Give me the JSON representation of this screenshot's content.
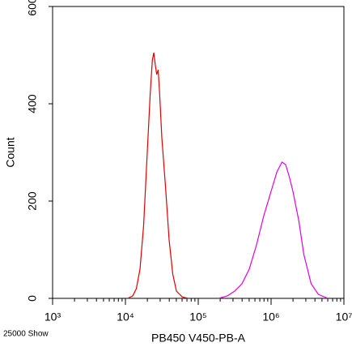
{
  "chart_data": {
    "type": "line",
    "xlabel": "PB450 V450-PB-A",
    "ylabel": "Count",
    "note": "25000 Show",
    "xscale": "log",
    "xlim": [
      1000,
      10000000
    ],
    "xticks": [
      {
        "value": 1000,
        "label": "10³"
      },
      {
        "value": 10000,
        "label": "10⁴"
      },
      {
        "value": 100000,
        "label": "10⁵"
      },
      {
        "value": 1000000,
        "label": "10⁶"
      },
      {
        "value": 10000000,
        "label": "10⁷"
      }
    ],
    "xminorticks": [
      2000,
      3000,
      4000,
      5000,
      6000,
      7000,
      8000,
      9000,
      20000,
      30000,
      40000,
      50000,
      60000,
      70000,
      80000,
      90000,
      200000,
      300000,
      400000,
      500000,
      600000,
      700000,
      800000,
      900000,
      2000000,
      3000000,
      4000000,
      5000000,
      6000000,
      7000000,
      8000000,
      9000000
    ],
    "ylim": [
      0,
      600
    ],
    "yticks": [
      0,
      200,
      400,
      600
    ],
    "series": [
      {
        "color": "#e00000",
        "x": [
          10715,
          12589,
          14125,
          15849,
          17783,
          19953,
          21878,
          23442,
          24547,
          25704,
          26915,
          28184,
          29512,
          31623,
          35481,
          39811,
          44668,
          50119,
          60256,
          72444
        ],
        "values": [
          0,
          5,
          20,
          60,
          150,
          300,
          420,
          490,
          505,
          480,
          460,
          470,
          420,
          330,
          230,
          120,
          50,
          15,
          3,
          0
        ]
      },
      {
        "color": "#e000e0",
        "x": [
          190546,
          251189,
          316228,
          398107,
          501187,
          630957,
          794328,
          1000000,
          1202264,
          1412538,
          1584893,
          1778279,
          1995262,
          2398833,
          2818383,
          3548134,
          4466836,
          6025596
        ],
        "values": [
          0,
          5,
          15,
          30,
          60,
          110,
          170,
          220,
          260,
          280,
          275,
          250,
          220,
          160,
          90,
          30,
          8,
          0
        ]
      }
    ]
  }
}
